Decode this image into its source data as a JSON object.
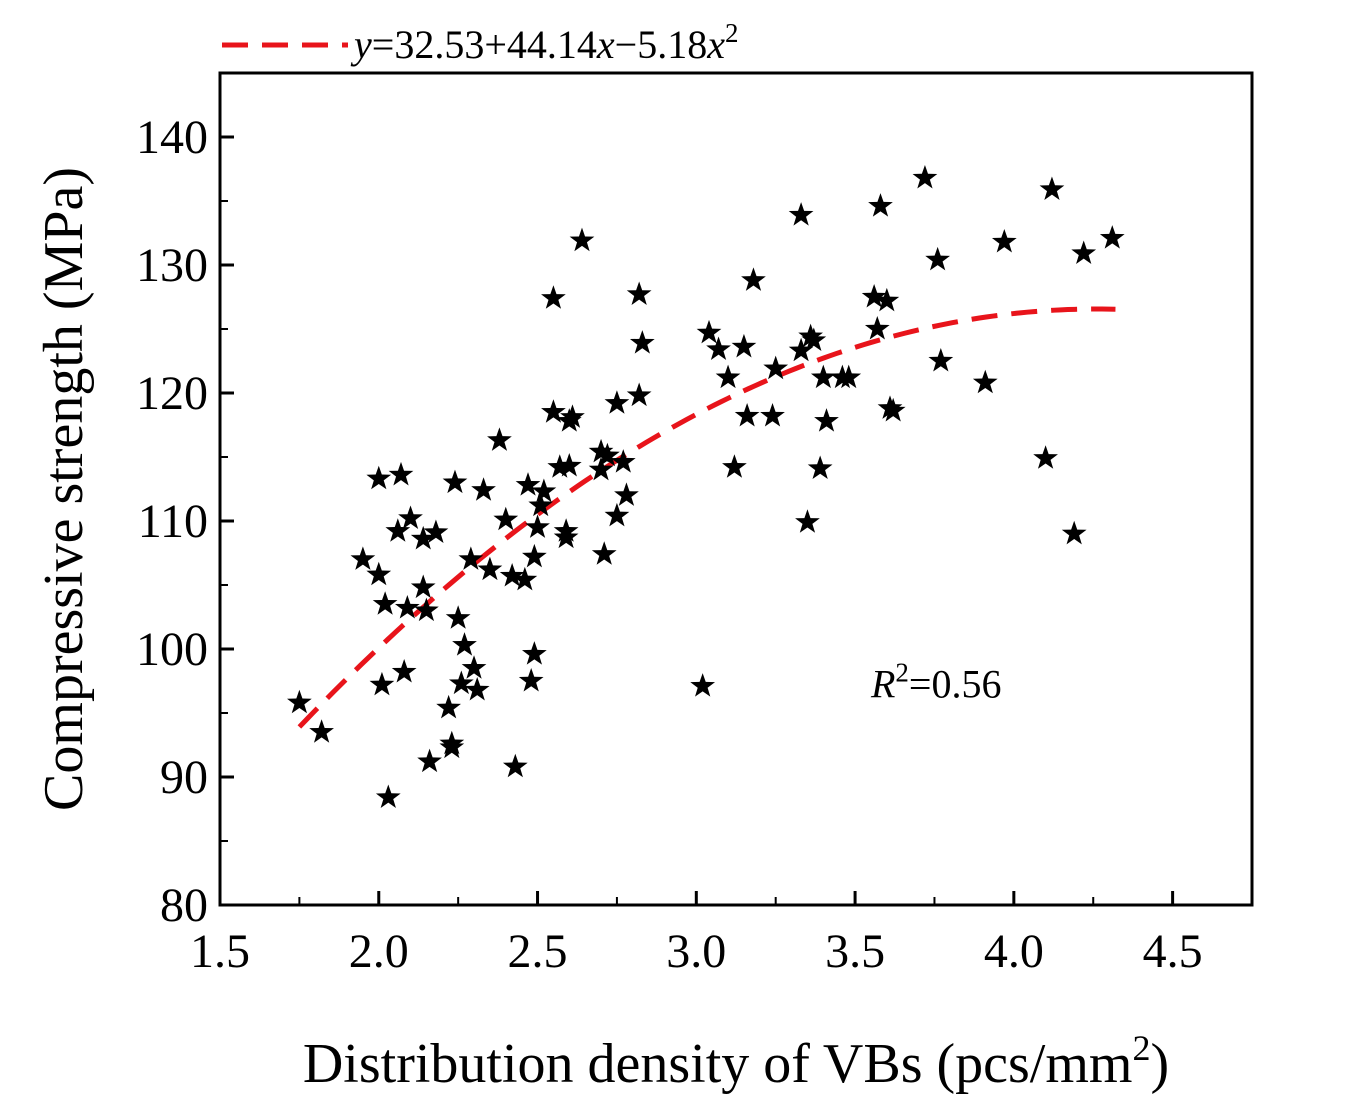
{
  "chart_data": {
    "type": "scatter",
    "title": "",
    "xlabel": "Distribution density of VBs (pcs/mm",
    "xlabel_sup": "2",
    "xlabel_tail": ")",
    "ylabel": "Compressive strength (MPa)",
    "xlim": [
      1.5,
      4.75
    ],
    "ylim": [
      80,
      145
    ],
    "xticks": [
      1.5,
      2.0,
      2.5,
      3.0,
      3.5,
      4.0,
      4.5
    ],
    "xtick_labels": [
      "1.5",
      "2.0",
      "2.5",
      "3.0",
      "3.5",
      "4.0",
      "4.5"
    ],
    "yticks": [
      80,
      90,
      100,
      110,
      120,
      130,
      140
    ],
    "ytick_labels": [
      "80",
      "90",
      "100",
      "110",
      "120",
      "130",
      "140"
    ],
    "marker": "star",
    "marker_color": "#000000",
    "fit_color": "#e8141b",
    "fit": {
      "coefficients": [
        32.53,
        44.14,
        -5.18
      ],
      "x_range": [
        1.75,
        4.32
      ],
      "label_parts": [
        "y",
        "=32.53+44.14",
        "x",
        "−5.18",
        "x",
        "2"
      ]
    },
    "annotation": {
      "parts": [
        "R",
        "2",
        "=0.56"
      ],
      "x": 3.55,
      "y": 97.3
    },
    "points": [
      [
        1.75,
        95.8
      ],
      [
        1.82,
        93.5
      ],
      [
        1.95,
        107.0
      ],
      [
        2.0,
        105.8
      ],
      [
        2.0,
        113.3
      ],
      [
        2.01,
        97.2
      ],
      [
        2.02,
        103.5
      ],
      [
        2.03,
        88.4
      ],
      [
        2.06,
        109.2
      ],
      [
        2.07,
        113.6
      ],
      [
        2.08,
        98.2
      ],
      [
        2.09,
        103.2
      ],
      [
        2.1,
        110.2
      ],
      [
        2.14,
        108.6
      ],
      [
        2.14,
        104.8
      ],
      [
        2.15,
        103.0
      ],
      [
        2.16,
        91.2
      ],
      [
        2.18,
        109.1
      ],
      [
        2.22,
        95.4
      ],
      [
        2.23,
        92.6
      ],
      [
        2.23,
        92.3
      ],
      [
        2.24,
        113.0
      ],
      [
        2.25,
        102.4
      ],
      [
        2.26,
        97.3
      ],
      [
        2.27,
        100.3
      ],
      [
        2.29,
        107.0
      ],
      [
        2.3,
        98.5
      ],
      [
        2.31,
        96.8
      ],
      [
        2.33,
        112.4
      ],
      [
        2.35,
        106.2
      ],
      [
        2.38,
        116.3
      ],
      [
        2.4,
        110.1
      ],
      [
        2.42,
        105.7
      ],
      [
        2.43,
        90.8
      ],
      [
        2.46,
        105.4
      ],
      [
        2.47,
        112.8
      ],
      [
        2.48,
        97.5
      ],
      [
        2.49,
        107.2
      ],
      [
        2.49,
        99.6
      ],
      [
        2.5,
        109.5
      ],
      [
        2.51,
        111.2
      ],
      [
        2.52,
        112.3
      ],
      [
        2.55,
        127.4
      ],
      [
        2.55,
        118.5
      ],
      [
        2.57,
        114.2
      ],
      [
        2.59,
        109.2
      ],
      [
        2.59,
        108.7
      ],
      [
        2.6,
        117.8
      ],
      [
        2.6,
        114.3
      ],
      [
        2.61,
        118.1
      ],
      [
        2.64,
        131.9
      ],
      [
        2.7,
        114.0
      ],
      [
        2.7,
        115.4
      ],
      [
        2.71,
        107.4
      ],
      [
        2.72,
        115.1
      ],
      [
        2.75,
        119.2
      ],
      [
        2.75,
        110.4
      ],
      [
        2.77,
        114.6
      ],
      [
        2.78,
        112.0
      ],
      [
        2.82,
        127.7
      ],
      [
        2.82,
        119.8
      ],
      [
        2.83,
        123.9
      ],
      [
        3.02,
        97.1
      ],
      [
        3.04,
        124.7
      ],
      [
        3.07,
        123.4
      ],
      [
        3.1,
        121.2
      ],
      [
        3.12,
        114.2
      ],
      [
        3.15,
        123.6
      ],
      [
        3.16,
        118.2
      ],
      [
        3.18,
        128.8
      ],
      [
        3.24,
        118.2
      ],
      [
        3.25,
        121.9
      ],
      [
        3.33,
        133.9
      ],
      [
        3.33,
        123.3
      ],
      [
        3.35,
        109.9
      ],
      [
        3.36,
        124.4
      ],
      [
        3.37,
        124.1
      ],
      [
        3.39,
        114.1
      ],
      [
        3.4,
        121.2
      ],
      [
        3.41,
        117.8
      ],
      [
        3.46,
        121.2
      ],
      [
        3.48,
        121.2
      ],
      [
        3.56,
        127.5
      ],
      [
        3.57,
        125.0
      ],
      [
        3.58,
        134.6
      ],
      [
        3.6,
        127.2
      ],
      [
        3.61,
        118.8
      ],
      [
        3.62,
        118.6
      ],
      [
        3.72,
        136.8
      ],
      [
        3.76,
        130.4
      ],
      [
        3.77,
        122.5
      ],
      [
        3.91,
        120.8
      ],
      [
        3.97,
        131.8
      ],
      [
        4.1,
        114.9
      ],
      [
        4.12,
        135.9
      ],
      [
        4.19,
        109.0
      ],
      [
        4.22,
        130.9
      ],
      [
        4.31,
        132.1
      ]
    ]
  }
}
